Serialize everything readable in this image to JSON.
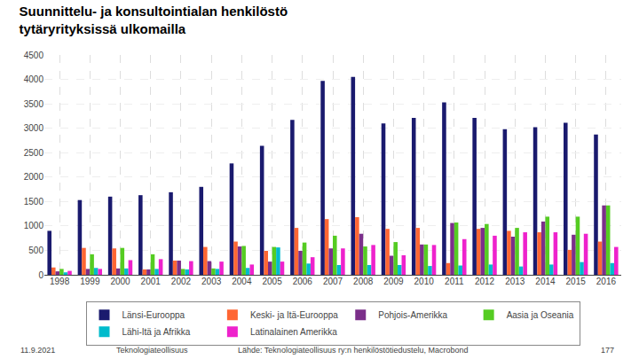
{
  "chart_data": {
    "type": "bar",
    "title": "Suunnittelu- ja konsultointialan henkilöstö",
    "subtitle": "tytäryrityksissä ulkomailla",
    "categories": [
      "1998",
      "1999",
      "2000",
      "2001",
      "2002",
      "2003",
      "2004",
      "2005",
      "2006",
      "2007",
      "2008",
      "2009",
      "2010",
      "2011",
      "2012",
      "2013",
      "2014",
      "2015",
      "2016"
    ],
    "series": [
      {
        "name": "Länsi-Eurooppa",
        "color": "#1a1a6e",
        "values": [
          900,
          1530,
          1600,
          1630,
          1690,
          1800,
          2280,
          2640,
          3170,
          3970,
          4050,
          3100,
          3210,
          3530,
          3210,
          2980,
          3020,
          3110,
          2870
        ]
      },
      {
        "name": "Keski- ja Itä-Eurooppa",
        "color": "#ff6633",
        "values": [
          150,
          550,
          540,
          110,
          290,
          570,
          680,
          490,
          960,
          1140,
          1180,
          940,
          960,
          240,
          940,
          900,
          870,
          510,
          680
        ]
      },
      {
        "name": "Pohjois-Amerikka",
        "color": "#7b2f8a",
        "values": [
          70,
          120,
          130,
          110,
          290,
          280,
          580,
          270,
          490,
          540,
          840,
          390,
          620,
          1060,
          960,
          780,
          1090,
          820,
          1420
        ]
      },
      {
        "name": "Aasia ja Oseania",
        "color": "#55cc22",
        "values": [
          120,
          420,
          550,
          420,
          120,
          130,
          590,
          570,
          660,
          800,
          580,
          670,
          620,
          1070,
          1040,
          960,
          1190,
          1190,
          1420
        ]
      },
      {
        "name": "Lähi-Itä ja Afrikka",
        "color": "#00bbcc",
        "values": [
          50,
          140,
          130,
          120,
          110,
          120,
          140,
          560,
          230,
          200,
          200,
          200,
          180,
          190,
          210,
          170,
          210,
          260,
          240
        ]
      },
      {
        "name": "Latinalainen Amerikka",
        "color": "#ee22cc",
        "values": [
          80,
          120,
          300,
          320,
          280,
          270,
          210,
          270,
          360,
          540,
          610,
          400,
          610,
          730,
          800,
          870,
          870,
          840,
          570
        ]
      }
    ],
    "ylim": [
      0,
      4500
    ],
    "yticks": [
      0,
      500,
      1000,
      1500,
      2000,
      2500,
      3000,
      3500,
      4000,
      4500
    ],
    "grid": true,
    "legend": "bottom",
    "annotations": [
      "11.9.2021",
      "Teknologiateollisuus",
      "Lähde: Teknologiateollisuus ry:n henkilöstötiedustelu, Macrobond",
      "177"
    ]
  }
}
